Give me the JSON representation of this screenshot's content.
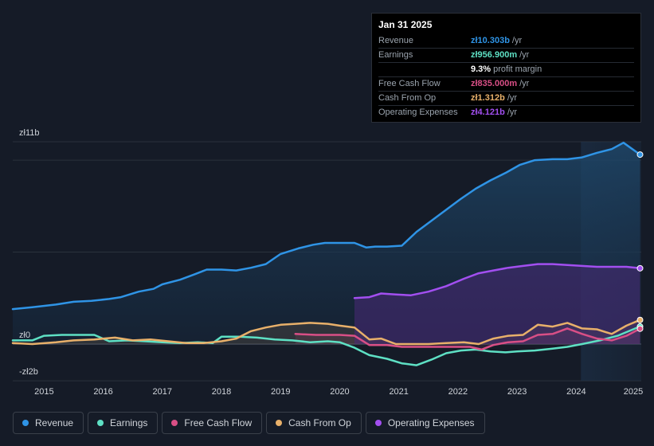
{
  "chart_data": {
    "type": "area",
    "currency_axis": {
      "top_label": "zł11b",
      "zero_label": "zł0",
      "bottom_label": "-zł2b"
    },
    "ylim": [
      -2,
      11
    ],
    "xlim": [
      2014.47,
      2025.1
    ],
    "x_ticks": [
      "2015",
      "2016",
      "2017",
      "2018",
      "2019",
      "2020",
      "2021",
      "2022",
      "2023",
      "2024",
      "2025"
    ],
    "x_tick_values": [
      2015,
      2016,
      2017,
      2018,
      2019,
      2020,
      2021,
      2022,
      2023,
      2024,
      2025
    ],
    "highlight_start": 2024.08,
    "series": [
      {
        "name": "Revenue",
        "color": "#2f94e6",
        "fill": true,
        "x": [
          2014.47,
          2014.8,
          2015.2,
          2015.5,
          2015.8,
          2016.1,
          2016.3,
          2016.6,
          2016.85,
          2017.0,
          2017.3,
          2017.55,
          2017.75,
          2018.0,
          2018.25,
          2018.5,
          2018.75,
          2019.0,
          2019.3,
          2019.55,
          2019.75,
          2020.0,
          2020.25,
          2020.45,
          2020.6,
          2020.8,
          2021.05,
          2021.3,
          2021.55,
          2021.8,
          2022.05,
          2022.3,
          2022.55,
          2022.8,
          2023.05,
          2023.3,
          2023.6,
          2023.85,
          2024.1,
          2024.35,
          2024.6,
          2024.8,
          2025.08
        ],
        "values": [
          1.9,
          2.0,
          2.15,
          2.3,
          2.35,
          2.45,
          2.55,
          2.85,
          3.0,
          3.25,
          3.5,
          3.8,
          4.05,
          4.05,
          4.0,
          4.15,
          4.35,
          4.9,
          5.2,
          5.4,
          5.5,
          5.5,
          5.5,
          5.25,
          5.3,
          5.3,
          5.35,
          6.1,
          6.7,
          7.3,
          7.9,
          8.45,
          8.9,
          9.3,
          9.75,
          10.0,
          10.05,
          10.05,
          10.15,
          10.4,
          10.6,
          10.95,
          10.303
        ]
      },
      {
        "name": "Earnings",
        "color": "#5ee0c4",
        "fill": false,
        "x": [
          2014.47,
          2014.8,
          2015.0,
          2015.3,
          2015.6,
          2015.85,
          2016.1,
          2016.4,
          2016.7,
          2017.0,
          2017.3,
          2017.6,
          2017.85,
          2018.0,
          2018.3,
          2018.6,
          2018.9,
          2019.2,
          2019.5,
          2019.8,
          2020.0,
          2020.25,
          2020.5,
          2020.8,
          2021.05,
          2021.3,
          2021.55,
          2021.8,
          2022.05,
          2022.3,
          2022.55,
          2022.8,
          2023.0,
          2023.3,
          2023.6,
          2023.85,
          2024.1,
          2024.4,
          2024.7,
          2025.08
        ],
        "values": [
          0.2,
          0.2,
          0.45,
          0.5,
          0.5,
          0.5,
          0.15,
          0.2,
          0.15,
          0.1,
          0.05,
          0.1,
          0.05,
          0.4,
          0.4,
          0.35,
          0.25,
          0.2,
          0.1,
          0.15,
          0.1,
          -0.2,
          -0.6,
          -0.8,
          -1.05,
          -1.15,
          -0.85,
          -0.5,
          -0.35,
          -0.3,
          -0.4,
          -0.45,
          -0.4,
          -0.35,
          -0.25,
          -0.15,
          0.0,
          0.2,
          0.45,
          0.957
        ]
      },
      {
        "name": "Free Cash Flow",
        "color": "#d94f86",
        "fill": true,
        "x": [
          2019.25,
          2019.6,
          2020.0,
          2020.25,
          2020.5,
          2020.8,
          2021.05,
          2021.3,
          2021.6,
          2021.9,
          2022.2,
          2022.4,
          2022.6,
          2022.85,
          2023.1,
          2023.35,
          2023.6,
          2023.85,
          2024.1,
          2024.35,
          2024.6,
          2024.85,
          2025.08
        ],
        "values": [
          0.55,
          0.5,
          0.5,
          0.45,
          -0.05,
          -0.05,
          -0.15,
          -0.15,
          -0.15,
          -0.15,
          -0.15,
          -0.3,
          -0.05,
          0.1,
          0.15,
          0.5,
          0.55,
          0.85,
          0.55,
          0.3,
          0.2,
          0.45,
          0.835
        ]
      },
      {
        "name": "Cash From Op",
        "color": "#e8b06a",
        "fill": true,
        "x": [
          2014.47,
          2014.8,
          2015.2,
          2015.5,
          2015.85,
          2016.2,
          2016.5,
          2016.8,
          2017.1,
          2017.4,
          2017.7,
          2018.0,
          2018.25,
          2018.5,
          2018.75,
          2019.0,
          2019.25,
          2019.5,
          2019.8,
          2020.0,
          2020.25,
          2020.5,
          2020.7,
          2020.95,
          2021.2,
          2021.5,
          2021.8,
          2022.1,
          2022.35,
          2022.6,
          2022.85,
          2023.1,
          2023.35,
          2023.6,
          2023.85,
          2024.1,
          2024.35,
          2024.6,
          2024.85,
          2025.08
        ],
        "values": [
          0.05,
          0.0,
          0.1,
          0.2,
          0.25,
          0.35,
          0.2,
          0.25,
          0.15,
          0.05,
          0.05,
          0.15,
          0.3,
          0.7,
          0.9,
          1.05,
          1.1,
          1.15,
          1.1,
          1.0,
          0.9,
          0.25,
          0.3,
          0.0,
          0.0,
          0.0,
          0.05,
          0.1,
          0.0,
          0.3,
          0.45,
          0.5,
          1.05,
          0.95,
          1.15,
          0.85,
          0.8,
          0.55,
          1.0,
          1.312
        ]
      },
      {
        "name": "Operating Expenses",
        "color": "#a24ff0",
        "fill": true,
        "x": [
          2020.25,
          2020.5,
          2020.7,
          2020.95,
          2021.2,
          2021.5,
          2021.8,
          2022.1,
          2022.35,
          2022.6,
          2022.85,
          2023.1,
          2023.35,
          2023.6,
          2023.85,
          2024.1,
          2024.35,
          2024.6,
          2024.85,
          2025.08
        ],
        "values": [
          2.5,
          2.55,
          2.75,
          2.7,
          2.65,
          2.85,
          3.15,
          3.55,
          3.85,
          4.0,
          4.15,
          4.25,
          4.35,
          4.35,
          4.3,
          4.25,
          4.2,
          4.2,
          4.2,
          4.121
        ]
      }
    ]
  },
  "tooltip": {
    "date": "Jan 31 2025",
    "rows": [
      {
        "label": "Revenue",
        "value": "zł10.303b",
        "unit": "/yr",
        "color": "#2f94e6"
      },
      {
        "label": "Earnings",
        "value": "zł956.900m",
        "unit": "/yr",
        "color": "#5ee0c4"
      },
      {
        "label": "",
        "value": "9.3%",
        "unit": "profit margin",
        "color": "#ffffff"
      },
      {
        "label": "Free Cash Flow",
        "value": "zł835.000m",
        "unit": "/yr",
        "color": "#d94f86"
      },
      {
        "label": "Cash From Op",
        "value": "zł1.312b",
        "unit": "/yr",
        "color": "#e8b06a"
      },
      {
        "label": "Operating Expenses",
        "value": "zł4.121b",
        "unit": "/yr",
        "color": "#a24ff0"
      }
    ]
  },
  "legend": [
    {
      "label": "Revenue",
      "color": "#2f94e6"
    },
    {
      "label": "Earnings",
      "color": "#5ee0c4"
    },
    {
      "label": "Free Cash Flow",
      "color": "#d94f86"
    },
    {
      "label": "Cash From Op",
      "color": "#e8b06a"
    },
    {
      "label": "Operating Expenses",
      "color": "#a24ff0"
    }
  ]
}
